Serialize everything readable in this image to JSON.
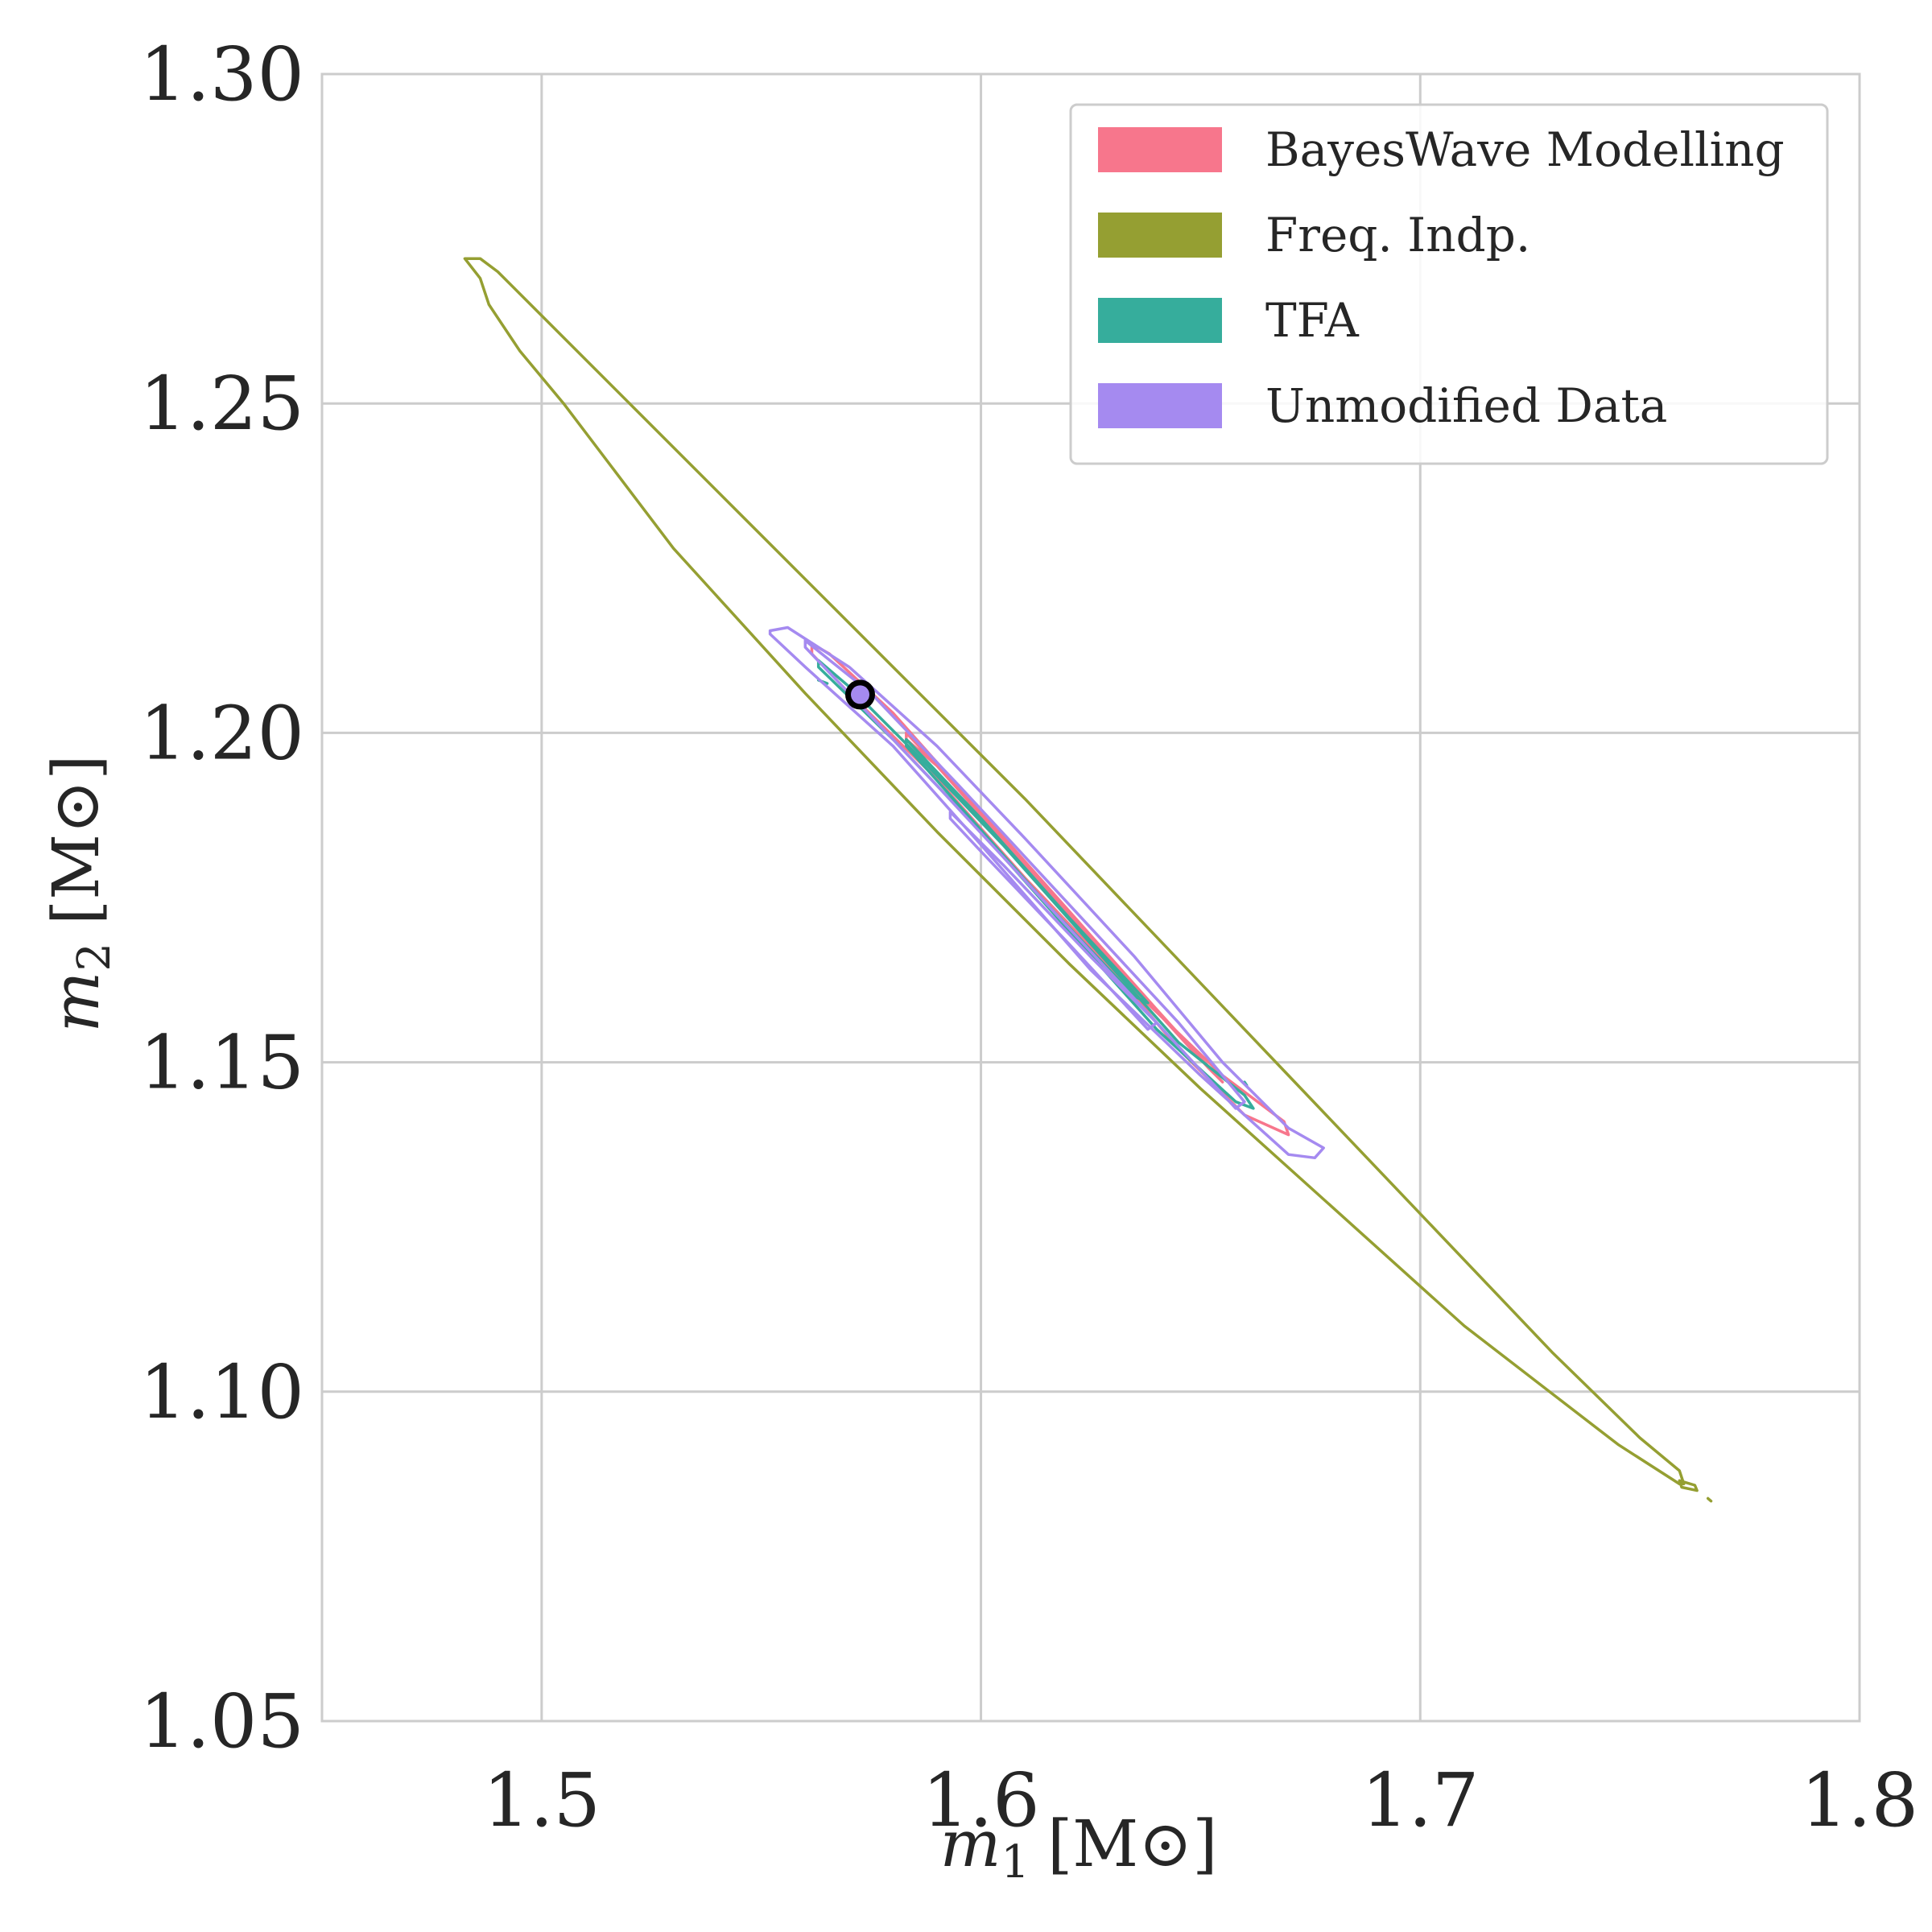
{
  "chart_data": {
    "type": "contour",
    "xlabel_var": "m",
    "xlabel_sub": "1",
    "xlabel_unit": "[M⊙]",
    "ylabel_var": "m",
    "ylabel_sub": "2",
    "ylabel_unit": "[M⊙]",
    "xlim": [
      1.45,
      1.8
    ],
    "ylim": [
      1.05,
      1.3
    ],
    "xticks": [
      1.5,
      1.6,
      1.7,
      1.8
    ],
    "xtick_labels": [
      "1.5",
      "1.6",
      "1.7",
      "1.8"
    ],
    "yticks": [
      1.05,
      1.1,
      1.15,
      1.2,
      1.25,
      1.3
    ],
    "ytick_labels": [
      "1.05",
      "1.10",
      "1.15",
      "1.20",
      "1.25",
      "1.30"
    ],
    "grid": true,
    "legend_position": "top-right",
    "series": [
      {
        "name": "BayesWave Modelling",
        "color": "#f7768c",
        "contours": [
          [
            [
              1.5615,
              1.2135
            ],
            [
              1.5655,
              1.212
            ],
            [
              1.58,
              1.203
            ],
            [
              1.6,
              1.188
            ],
            [
              1.62,
              1.172
            ],
            [
              1.645,
              1.152
            ],
            [
              1.66,
              1.142
            ],
            [
              1.67,
              1.139
            ],
            [
              1.669,
              1.141
            ],
            [
              1.655,
              1.148
            ],
            [
              1.63,
              1.164
            ],
            [
              1.61,
              1.178
            ],
            [
              1.59,
              1.193
            ],
            [
              1.57,
              1.206
            ],
            [
              1.5615,
              1.212
            ]
          ],
          [
            [
              1.583,
              1.2
            ],
            [
              1.6,
              1.188
            ],
            [
              1.62,
              1.173
            ],
            [
              1.64,
              1.158
            ],
            [
              1.655,
              1.147
            ],
            [
              1.652,
              1.149
            ],
            [
              1.63,
              1.165
            ],
            [
              1.61,
              1.18
            ],
            [
              1.59,
              1.195
            ],
            [
              1.583,
              1.199
            ]
          ]
        ]
      },
      {
        "name": "Freq. Indp.",
        "color": "#959f32",
        "contours": [
          [
            [
              1.4825,
              1.272
            ],
            [
              1.486,
              1.272
            ],
            [
              1.49,
              1.27
            ],
            [
              1.52,
              1.25
            ],
            [
              1.55,
              1.23
            ],
            [
              1.58,
              1.21
            ],
            [
              1.61,
              1.19
            ],
            [
              1.64,
              1.169
            ],
            [
              1.67,
              1.148
            ],
            [
              1.7,
              1.127
            ],
            [
              1.73,
              1.106
            ],
            [
              1.75,
              1.093
            ],
            [
              1.759,
              1.088
            ],
            [
              1.76,
              1.086
            ],
            [
              1.759,
              1.086
            ],
            [
              1.745,
              1.092
            ],
            [
              1.71,
              1.11
            ],
            [
              1.68,
              1.128
            ],
            [
              1.65,
              1.146
            ],
            [
              1.62,
              1.165
            ],
            [
              1.59,
              1.185
            ],
            [
              1.56,
              1.206
            ],
            [
              1.53,
              1.228
            ],
            [
              1.505,
              1.25
            ],
            [
              1.495,
              1.258
            ],
            [
              1.488,
              1.265
            ],
            [
              1.486,
              1.269
            ],
            [
              1.4825,
              1.272
            ]
          ],
          [
            [
              1.759,
              1.0865
            ],
            [
              1.7625,
              1.0858
            ],
            [
              1.763,
              1.085
            ],
            [
              1.7595,
              1.0855
            ]
          ],
          [
            [
              1.7655,
              1.0838
            ],
            [
              1.7662,
              1.0834
            ]
          ]
        ]
      },
      {
        "name": "TFA",
        "color": "#36ad9c",
        "contours": [
          [
            [
              1.563,
              1.211
            ],
            [
              1.57,
              1.207
            ],
            [
              1.585,
              1.197
            ],
            [
              1.605,
              1.183
            ],
            [
              1.625,
              1.168
            ],
            [
              1.645,
              1.153
            ],
            [
              1.66,
              1.145
            ],
            [
              1.662,
              1.143
            ],
            [
              1.658,
              1.144
            ],
            [
              1.64,
              1.155
            ],
            [
              1.62,
              1.17
            ],
            [
              1.6,
              1.185
            ],
            [
              1.58,
              1.199
            ],
            [
              1.563,
              1.21
            ]
          ],
          [
            [
              1.583,
              1.199
            ],
            [
              1.6,
              1.187
            ],
            [
              1.62,
              1.172
            ],
            [
              1.638,
              1.159
            ],
            [
              1.635,
              1.16
            ],
            [
              1.615,
              1.174
            ],
            [
              1.595,
              1.189
            ],
            [
              1.583,
              1.198
            ]
          ],
          [
            [
              1.563,
              1.208
            ],
            [
              1.565,
              1.2075
            ]
          ],
          [
            [
              1.66,
              1.147
            ],
            [
              1.6605,
              1.1465
            ]
          ]
        ]
      },
      {
        "name": "Unmodified Data",
        "color": "#a58af0",
        "contours": [
          [
            [
              1.552,
              1.2155
            ],
            [
              1.556,
              1.216
            ],
            [
              1.57,
              1.21
            ],
            [
              1.59,
              1.198
            ],
            [
              1.61,
              1.184
            ],
            [
              1.635,
              1.166
            ],
            [
              1.655,
              1.15
            ],
            [
              1.67,
              1.14
            ],
            [
              1.678,
              1.137
            ],
            [
              1.676,
              1.1355
            ],
            [
              1.67,
              1.136
            ],
            [
              1.65,
              1.148
            ],
            [
              1.625,
              1.164
            ],
            [
              1.6,
              1.183
            ],
            [
              1.58,
              1.198
            ],
            [
              1.56,
              1.21
            ],
            [
              1.552,
              1.215
            ]
          ],
          [
            [
              1.56,
              1.214
            ],
            [
              1.575,
              1.206
            ],
            [
              1.595,
              1.192
            ],
            [
              1.62,
              1.174
            ],
            [
              1.645,
              1.156
            ],
            [
              1.66,
              1.144
            ],
            [
              1.658,
              1.143
            ],
            [
              1.64,
              1.156
            ],
            [
              1.615,
              1.174
            ],
            [
              1.59,
              1.192
            ],
            [
              1.57,
              1.206
            ],
            [
              1.56,
              1.213
            ]
          ],
          [
            [
              1.593,
              1.188
            ],
            [
              1.605,
              1.18
            ],
            [
              1.625,
              1.166
            ],
            [
              1.64,
              1.156
            ],
            [
              1.638,
              1.155
            ],
            [
              1.62,
              1.168
            ],
            [
              1.6,
              1.182
            ],
            [
              1.593,
              1.187
            ]
          ]
        ]
      }
    ],
    "marker": {
      "x": 1.5725,
      "y": 1.2058,
      "fill": "#a58af0",
      "stroke": "#000000"
    }
  }
}
